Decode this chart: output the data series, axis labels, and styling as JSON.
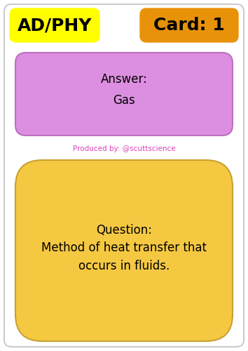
{
  "bg_color": "#ffffff",
  "label_left_text": "AD/PHY",
  "label_left_bg": "#ffff00",
  "label_right_text": "Card: 1",
  "label_right_bg": "#e8920a",
  "answer_box_bg": "#dc8fe0",
  "answer_label": "Answer:",
  "answer_text": "Gas",
  "produced_by": "Produced by: @scuttscience",
  "produced_by_color": "#e040bb",
  "question_box_bg": "#f5c842",
  "question_label": "Question:",
  "question_text": "Method of heat transfer that\noccurs in fluids.",
  "font_family": "DejaVu Sans"
}
